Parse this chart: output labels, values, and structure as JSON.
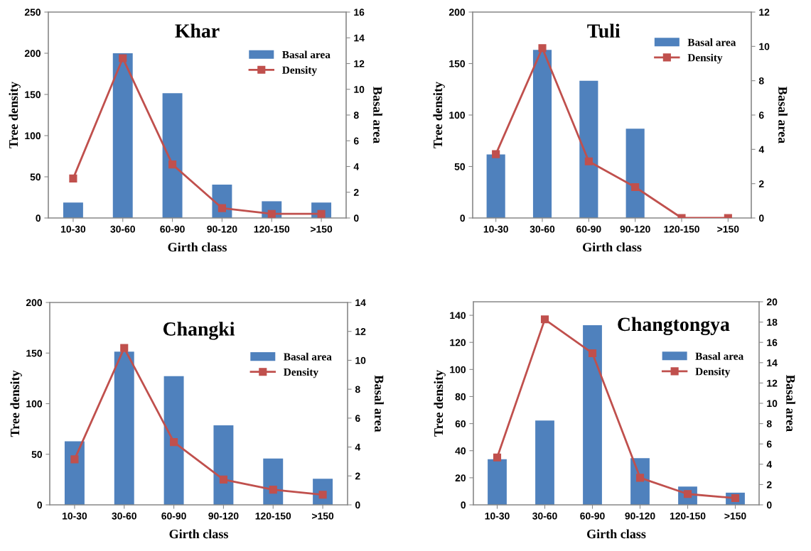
{
  "chart_data": [
    {
      "type": "bar",
      "title": "Khar",
      "xlabel": "Girth class",
      "ylabel": "Tree density",
      "y2label": "Basal area",
      "categories": [
        "10-30",
        "30-60",
        "60-90",
        "90-120",
        "120-150",
        ">150"
      ],
      "ylim": [
        0,
        250
      ],
      "yticks": [
        0,
        50,
        100,
        150,
        200,
        250
      ],
      "y2lim": [
        0,
        16
      ],
      "y2ticks": [
        0,
        2,
        4,
        6,
        8,
        10,
        12,
        14,
        16
      ],
      "legend": "top right",
      "series": [
        {
          "name": "Basal area",
          "axis": "y2",
          "color": "#4f81bd",
          "values": [
            1.2,
            12.8,
            9.7,
            2.6,
            1.3,
            1.2
          ]
        },
        {
          "name": "Density",
          "type": "line",
          "axis": "y",
          "color": "#c0504d",
          "marker": "square",
          "values": [
            48,
            194,
            65,
            12,
            5,
            5
          ]
        }
      ]
    },
    {
      "type": "bar",
      "title": "Tuli",
      "xlabel": "Girth class",
      "ylabel": "Tree density",
      "y2label": "Basal area",
      "categories": [
        "10-30",
        "30-60",
        "60-90",
        "90-120",
        "120-150",
        ">150"
      ],
      "ylim": [
        0,
        200
      ],
      "yticks": [
        0,
        50,
        100,
        150,
        200
      ],
      "y2lim": [
        0,
        12
      ],
      "y2ticks": [
        0,
        2,
        4,
        6,
        8,
        10,
        12
      ],
      "legend": "top right",
      "series": [
        {
          "name": "Basal area",
          "axis": "y2",
          "color": "#4f81bd",
          "values": [
            3.7,
            9.8,
            8.0,
            5.2,
            0,
            0
          ]
        },
        {
          "name": "Density",
          "type": "line",
          "axis": "y",
          "color": "#c0504d",
          "marker": "square",
          "values": [
            62,
            165,
            55,
            30,
            0,
            0
          ]
        }
      ]
    },
    {
      "type": "bar",
      "title": "Changki",
      "xlabel": "Girth class",
      "ylabel": "Tree density",
      "y2label": "Basal area",
      "categories": [
        "10-30",
        "30-60",
        "60-90",
        "90-120",
        "120-150",
        ">150"
      ],
      "ylim": [
        0,
        200
      ],
      "yticks": [
        0,
        50,
        100,
        150,
        200
      ],
      "y2lim": [
        0,
        14
      ],
      "y2ticks": [
        0,
        2,
        4,
        6,
        8,
        10,
        12,
        14
      ],
      "legend": "top right",
      "series": [
        {
          "name": "Basal area",
          "axis": "y2",
          "color": "#4f81bd",
          "values": [
            4.4,
            10.6,
            8.9,
            5.5,
            3.2,
            1.8
          ]
        },
        {
          "name": "Density",
          "type": "line",
          "axis": "y",
          "color": "#c0504d",
          "marker": "square",
          "values": [
            45,
            155,
            62,
            25,
            15,
            10
          ]
        }
      ]
    },
    {
      "type": "bar",
      "title": "Changtongya",
      "xlabel": "Girth class",
      "ylabel": "Tree density",
      "y2label": "Basal area",
      "categories": [
        "10-30",
        "30-60",
        "60-90",
        "90-120",
        "120-150",
        ">150"
      ],
      "ylim": [
        0,
        150
      ],
      "yticks": [
        0,
        20,
        40,
        60,
        80,
        100,
        120,
        140
      ],
      "y2lim": [
        0,
        20
      ],
      "y2ticks": [
        0,
        2,
        4,
        6,
        8,
        10,
        12,
        14,
        16,
        18,
        20
      ],
      "legend": "top right",
      "series": [
        {
          "name": "Basal area",
          "axis": "y2",
          "color": "#4f81bd",
          "values": [
            4.5,
            8.3,
            17.7,
            4.6,
            1.8,
            1.2
          ]
        },
        {
          "name": "Density",
          "type": "line",
          "axis": "y",
          "color": "#c0504d",
          "marker": "square",
          "values": [
            35,
            137,
            112,
            20,
            8,
            5
          ]
        }
      ]
    }
  ]
}
